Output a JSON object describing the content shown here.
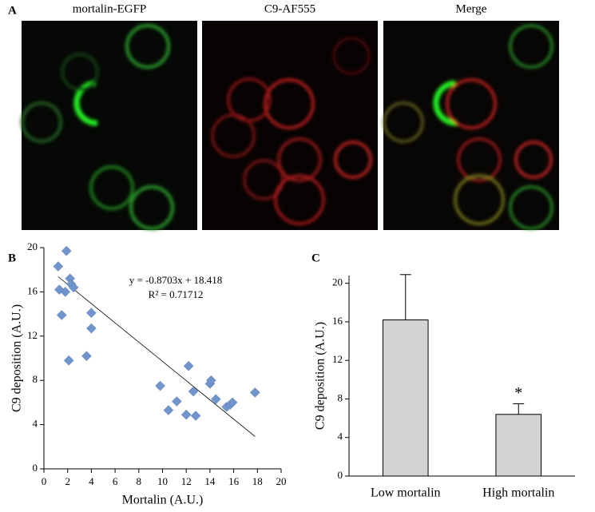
{
  "panel_labels": [
    "A",
    "B",
    "C"
  ],
  "images": [
    {
      "title": "mortalin-EGFP"
    },
    {
      "title": "C9-AF555"
    },
    {
      "title": "Merge"
    }
  ],
  "chart_data": [
    {
      "type": "scatter",
      "xlabel": "Mortalin (A.U.)",
      "ylabel": "C9 deposition (A.U.)",
      "annotations": [
        "y = -0.8703x + 18.418",
        "R² = 0.71712"
      ],
      "color": "#7094cc",
      "x": [
        1.2,
        1.3,
        1.5,
        1.8,
        1.9,
        2.1,
        2.2,
        2.3,
        2.5,
        3.6,
        4.0,
        4.0,
        9.8,
        10.5,
        11.2,
        12.0,
        12.2,
        12.6,
        12.8,
        14.0,
        14.1,
        14.5,
        15.4,
        15.7,
        15.9,
        17.8
      ],
      "values": [
        18.3,
        16.2,
        13.9,
        16.0,
        19.7,
        9.8,
        17.2,
        16.7,
        16.4,
        10.2,
        14.1,
        12.7,
        7.5,
        5.3,
        6.1,
        4.9,
        9.3,
        7.0,
        4.8,
        7.7,
        8.0,
        6.3,
        5.6,
        5.8,
        6.0,
        6.9
      ],
      "trendline": {
        "slope": -0.8703,
        "intercept": 18.418,
        "x_range": [
          1.2,
          17.8
        ]
      },
      "xlim": [
        0,
        20
      ],
      "xticks": [
        0,
        2,
        4,
        6,
        8,
        10,
        12,
        14,
        16,
        18,
        20
      ],
      "ylim": [
        0,
        20
      ],
      "yticks": [
        0,
        4,
        8,
        12,
        16,
        20
      ]
    },
    {
      "type": "bar",
      "ylabel": "C9 deposition (A.U.)",
      "categories": [
        "Low mortalin",
        "High mortalin"
      ],
      "values": [
        16.2,
        6.4
      ],
      "errors": [
        4.7,
        1.1
      ],
      "annotations": [
        "*"
      ],
      "color": "#d3d3d3",
      "ylim": [
        0,
        20.8
      ],
      "yticks": [
        0,
        4,
        8,
        12,
        16,
        20
      ]
    }
  ]
}
